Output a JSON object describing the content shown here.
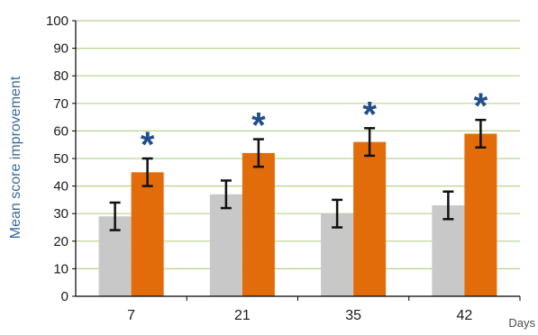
{
  "chart_data": {
    "type": "bar",
    "title": "",
    "xlabel": "Days",
    "ylabel": "Mean score improvement",
    "ylim": [
      0,
      100
    ],
    "yticks": [
      0,
      10,
      20,
      30,
      40,
      50,
      60,
      70,
      80,
      90,
      100
    ],
    "grid": true,
    "legend": "none",
    "categories": [
      "7",
      "21",
      "35",
      "42"
    ],
    "series": [
      {
        "values": [
          29,
          37,
          30,
          33
        ],
        "errors": [
          5,
          5,
          5,
          5
        ],
        "color": "#c8c8c8"
      },
      {
        "values": [
          45,
          52,
          56,
          59
        ],
        "errors": [
          5,
          5,
          5,
          5
        ],
        "color": "#e36c0a"
      }
    ],
    "annotations": [
      {
        "category": "7",
        "text": "*"
      },
      {
        "category": "21",
        "text": "*"
      },
      {
        "category": "35",
        "text": "*"
      },
      {
        "category": "42",
        "text": "*"
      }
    ],
    "grid_color": "#b7d38f",
    "axis_color": "#000000",
    "annotation_color": "#1f4e8c"
  }
}
